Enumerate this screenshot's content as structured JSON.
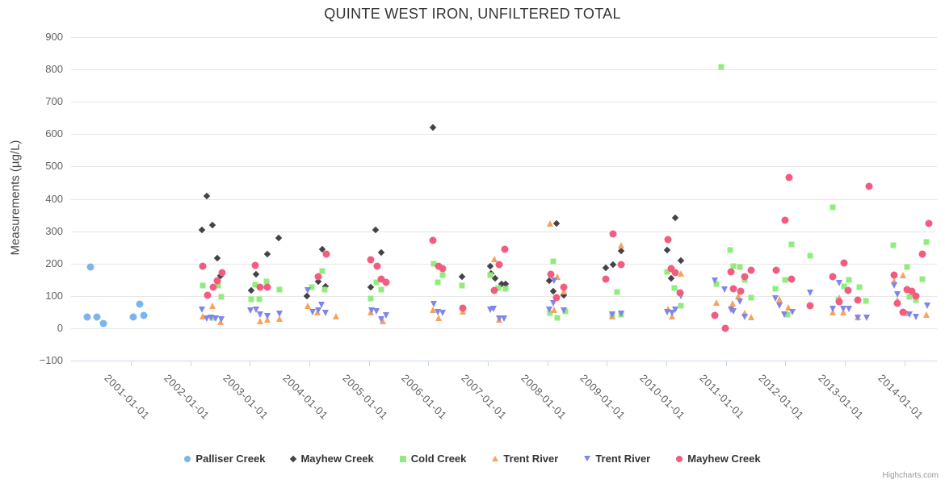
{
  "title": "QUINTE WEST IRON, UNFILTERED TOTAL",
  "credits_label": "Highcharts.com",
  "chart_data": {
    "type": "scatter",
    "title": "QUINTE WEST IRON, UNFILTERED TOTAL",
    "xlabel": "",
    "ylabel": "Measurements (µg/L)",
    "ylim": [
      -100,
      900
    ],
    "grid": "horizontal",
    "legend_position": "bottom",
    "x_unit": "decimal_year",
    "x_range": [
      2000.0,
      2014.55
    ],
    "y_ticks": [
      -100,
      0,
      100,
      200,
      300,
      400,
      500,
      600,
      700,
      800,
      900
    ],
    "x_ticks": [
      "2001-01-01",
      "2002-01-01",
      "2003-01-01",
      "2004-01-01",
      "2005-01-01",
      "2006-01-01",
      "2007-01-01",
      "2008-01-01",
      "2009-01-01",
      "2010-01-01",
      "2011-01-01",
      "2012-01-01",
      "2013-01-01",
      "2014-01-01"
    ],
    "series": [
      {
        "name": "Palliser Creek",
        "marker": "circle",
        "color": "#7cb5ec",
        "points": [
          [
            2000.27,
            35
          ],
          [
            2000.32,
            190
          ],
          [
            2000.43,
            35
          ],
          [
            2000.54,
            15
          ],
          [
            2001.04,
            35
          ],
          [
            2001.15,
            75
          ],
          [
            2001.22,
            40
          ]
        ]
      },
      {
        "name": "Mayhew Creek",
        "marker": "diamond",
        "color": "#434348",
        "points": [
          [
            2002.19,
            305
          ],
          [
            2002.28,
            410
          ],
          [
            2002.37,
            320
          ],
          [
            2002.45,
            217
          ],
          [
            2002.51,
            162
          ],
          [
            2003.02,
            117
          ],
          [
            2003.1,
            167
          ],
          [
            2003.29,
            229
          ],
          [
            2003.48,
            279
          ],
          [
            2003.96,
            100
          ],
          [
            2004.15,
            145
          ],
          [
            2004.22,
            244
          ],
          [
            2004.27,
            130
          ],
          [
            2005.03,
            127
          ],
          [
            2005.11,
            303
          ],
          [
            2005.21,
            234
          ],
          [
            2006.07,
            620
          ],
          [
            2006.56,
            160
          ],
          [
            2007.04,
            192
          ],
          [
            2007.05,
            170
          ],
          [
            2007.12,
            155
          ],
          [
            2007.23,
            137
          ],
          [
            2007.3,
            137
          ],
          [
            2008.03,
            147
          ],
          [
            2008.1,
            115
          ],
          [
            2008.15,
            323
          ],
          [
            2008.27,
            102
          ],
          [
            2008.98,
            187
          ],
          [
            2009.1,
            197
          ],
          [
            2009.24,
            239
          ],
          [
            2010.01,
            242
          ],
          [
            2010.08,
            155
          ],
          [
            2010.15,
            342
          ],
          [
            2010.24,
            209
          ]
        ]
      },
      {
        "name": "Cold Creek",
        "marker": "square",
        "color": "#90ed7d",
        "points": [
          [
            2002.21,
            132
          ],
          [
            2002.37,
            32
          ],
          [
            2002.47,
            132
          ],
          [
            2002.52,
            97
          ],
          [
            2003.02,
            90
          ],
          [
            2003.09,
            135
          ],
          [
            2003.16,
            90
          ],
          [
            2003.28,
            145
          ],
          [
            2003.5,
            120
          ],
          [
            2004.04,
            127
          ],
          [
            2004.22,
            177
          ],
          [
            2004.26,
            120
          ],
          [
            2005.03,
            92
          ],
          [
            2005.12,
            142
          ],
          [
            2005.21,
            120
          ],
          [
            2006.09,
            200
          ],
          [
            2006.16,
            142
          ],
          [
            2006.24,
            165
          ],
          [
            2006.56,
            132
          ],
          [
            2007.04,
            165
          ],
          [
            2007.18,
            125
          ],
          [
            2007.3,
            122
          ],
          [
            2008.05,
            47
          ],
          [
            2008.1,
            208
          ],
          [
            2008.17,
            32
          ],
          [
            2008.3,
            52
          ],
          [
            2009.09,
            40
          ],
          [
            2009.17,
            112
          ],
          [
            2009.24,
            42
          ],
          [
            2010.01,
            175
          ],
          [
            2010.13,
            125
          ],
          [
            2010.25,
            70
          ],
          [
            2010.84,
            137
          ],
          [
            2010.92,
            808
          ],
          [
            2011.07,
            242
          ],
          [
            2011.12,
            192
          ],
          [
            2011.23,
            190
          ],
          [
            2011.31,
            150
          ],
          [
            2011.42,
            95
          ],
          [
            2011.83,
            122
          ],
          [
            2011.99,
            150
          ],
          [
            2012.04,
            42
          ],
          [
            2012.1,
            259
          ],
          [
            2012.42,
            225
          ],
          [
            2012.8,
            374
          ],
          [
            2012.89,
            87
          ],
          [
            2012.98,
            130
          ],
          [
            2013.06,
            150
          ],
          [
            2013.24,
            127
          ],
          [
            2013.35,
            85
          ],
          [
            2013.82,
            257
          ],
          [
            2014.04,
            190
          ],
          [
            2014.08,
            97
          ],
          [
            2014.19,
            87
          ],
          [
            2014.3,
            152
          ],
          [
            2014.37,
            267
          ]
        ]
      },
      {
        "name": "Trent River",
        "marker": "triangle-up",
        "color": "#f7a35c",
        "points": [
          [
            2002.21,
            37
          ],
          [
            2002.37,
            70
          ],
          [
            2002.51,
            20
          ],
          [
            2003.17,
            22
          ],
          [
            2003.29,
            27
          ],
          [
            2003.5,
            30
          ],
          [
            2003.97,
            70
          ],
          [
            2004.13,
            50
          ],
          [
            2004.45,
            37
          ],
          [
            2005.03,
            50
          ],
          [
            2005.23,
            22
          ],
          [
            2006.07,
            57
          ],
          [
            2006.17,
            32
          ],
          [
            2006.58,
            52
          ],
          [
            2007.11,
            215
          ],
          [
            2007.19,
            27
          ],
          [
            2008.05,
            325
          ],
          [
            2008.11,
            57
          ],
          [
            2008.17,
            160
          ],
          [
            2008.27,
            115
          ],
          [
            2009.09,
            37
          ],
          [
            2009.24,
            257
          ],
          [
            2010.03,
            60
          ],
          [
            2010.09,
            37
          ],
          [
            2010.24,
            170
          ],
          [
            2010.84,
            80
          ],
          [
            2011.11,
            77
          ],
          [
            2011.21,
            100
          ],
          [
            2011.31,
            47
          ],
          [
            2011.42,
            35
          ],
          [
            2011.9,
            90
          ],
          [
            2012.05,
            65
          ],
          [
            2012.8,
            50
          ],
          [
            2012.9,
            95
          ],
          [
            2012.97,
            50
          ],
          [
            2013.21,
            35
          ],
          [
            2013.83,
            147
          ],
          [
            2013.88,
            87
          ],
          [
            2013.98,
            165
          ],
          [
            2014.05,
            47
          ],
          [
            2014.37,
            42
          ]
        ]
      },
      {
        "name": "Trent River",
        "marker": "triangle-down",
        "color": "#8085e9",
        "points": [
          [
            2002.19,
            57
          ],
          [
            2002.28,
            30
          ],
          [
            2002.34,
            32
          ],
          [
            2002.42,
            30
          ],
          [
            2002.52,
            27
          ],
          [
            2003.01,
            55
          ],
          [
            2003.1,
            57
          ],
          [
            2003.17,
            42
          ],
          [
            2003.29,
            37
          ],
          [
            2003.5,
            45
          ],
          [
            2003.97,
            117
          ],
          [
            2004.05,
            50
          ],
          [
            2004.15,
            55
          ],
          [
            2004.2,
            72
          ],
          [
            2004.27,
            47
          ],
          [
            2005.04,
            55
          ],
          [
            2005.12,
            52
          ],
          [
            2005.21,
            27
          ],
          [
            2005.29,
            40
          ],
          [
            2006.09,
            75
          ],
          [
            2006.16,
            50
          ],
          [
            2006.24,
            47
          ],
          [
            2007.04,
            57
          ],
          [
            2007.09,
            60
          ],
          [
            2007.19,
            30
          ],
          [
            2007.27,
            30
          ],
          [
            2008.03,
            57
          ],
          [
            2008.1,
            77
          ],
          [
            2008.11,
            147
          ],
          [
            2008.27,
            55
          ],
          [
            2009.09,
            42
          ],
          [
            2009.24,
            45
          ],
          [
            2010.01,
            50
          ],
          [
            2010.09,
            47
          ],
          [
            2010.15,
            57
          ],
          [
            2010.24,
            100
          ],
          [
            2010.82,
            147
          ],
          [
            2010.97,
            120
          ],
          [
            2011.08,
            57
          ],
          [
            2011.13,
            52
          ],
          [
            2011.23,
            82
          ],
          [
            2011.32,
            35
          ],
          [
            2011.83,
            92
          ],
          [
            2011.9,
            70
          ],
          [
            2011.98,
            42
          ],
          [
            2012.11,
            50
          ],
          [
            2012.42,
            110
          ],
          [
            2012.8,
            60
          ],
          [
            2012.9,
            140
          ],
          [
            2012.97,
            60
          ],
          [
            2013.06,
            60
          ],
          [
            2013.22,
            32
          ],
          [
            2013.36,
            32
          ],
          [
            2013.83,
            132
          ],
          [
            2013.88,
            105
          ],
          [
            2014.08,
            42
          ],
          [
            2014.19,
            35
          ],
          [
            2014.38,
            70
          ]
        ]
      },
      {
        "name": "Mayhew Creek",
        "marker": "circle",
        "color": "#f15c80",
        "points": [
          [
            2002.21,
            192
          ],
          [
            2002.29,
            102
          ],
          [
            2002.38,
            127
          ],
          [
            2002.45,
            147
          ],
          [
            2002.53,
            172
          ],
          [
            2003.09,
            195
          ],
          [
            2003.17,
            127
          ],
          [
            2003.29,
            127
          ],
          [
            2004.15,
            160
          ],
          [
            2004.28,
            229
          ],
          [
            2005.03,
            212
          ],
          [
            2005.14,
            192
          ],
          [
            2005.21,
            152
          ],
          [
            2005.29,
            142
          ],
          [
            2006.07,
            272
          ],
          [
            2006.17,
            192
          ],
          [
            2006.24,
            185
          ],
          [
            2006.58,
            62
          ],
          [
            2007.11,
            117
          ],
          [
            2007.19,
            197
          ],
          [
            2007.28,
            244
          ],
          [
            2008.06,
            167
          ],
          [
            2008.15,
            95
          ],
          [
            2008.28,
            127
          ],
          [
            2008.98,
            152
          ],
          [
            2009.1,
            292
          ],
          [
            2009.24,
            197
          ],
          [
            2010.03,
            274
          ],
          [
            2010.08,
            185
          ],
          [
            2010.15,
            172
          ],
          [
            2010.23,
            110
          ],
          [
            2010.82,
            40
          ],
          [
            2010.99,
            0
          ],
          [
            2011.08,
            175
          ],
          [
            2011.12,
            122
          ],
          [
            2011.25,
            115
          ],
          [
            2011.31,
            160
          ],
          [
            2011.42,
            180
          ],
          [
            2011.84,
            180
          ],
          [
            2011.99,
            334
          ],
          [
            2012.06,
            465
          ],
          [
            2012.1,
            152
          ],
          [
            2012.42,
            70
          ],
          [
            2012.8,
            160
          ],
          [
            2012.9,
            82
          ],
          [
            2012.99,
            202
          ],
          [
            2013.05,
            117
          ],
          [
            2013.22,
            87
          ],
          [
            2013.4,
            440
          ],
          [
            2013.83,
            165
          ],
          [
            2013.88,
            77
          ],
          [
            2013.98,
            50
          ],
          [
            2014.05,
            120
          ],
          [
            2014.12,
            115
          ],
          [
            2014.19,
            100
          ],
          [
            2014.3,
            229
          ],
          [
            2014.41,
            325
          ]
        ]
      }
    ]
  }
}
